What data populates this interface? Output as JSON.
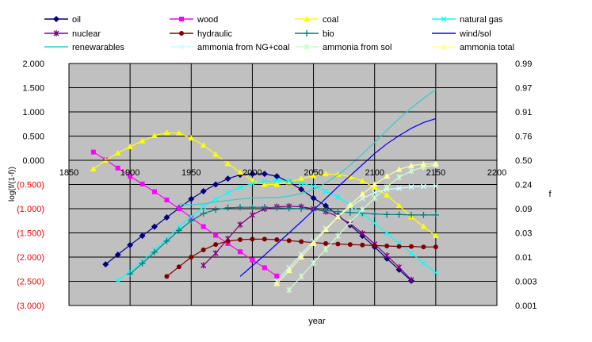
{
  "chart_data": {
    "type": "line",
    "xlabel": "year",
    "ylabel": "log(f/(1-f))",
    "y2label": "f",
    "xlim": [
      1850,
      2200
    ],
    "ylim": [
      -3.0,
      2.0
    ],
    "x_ticks": [
      "1850",
      "1900",
      "1950",
      "2000",
      "2050",
      "2100",
      "2150",
      "2200"
    ],
    "y_ticks": [
      "2.000",
      "1.500",
      "1.000",
      "0.500",
      "0.000",
      "(0.500)",
      "(1.000)",
      "(1.500)",
      "(2.000)",
      "(2.500)",
      "(3.000)"
    ],
    "y_tick_values": [
      2.0,
      1.5,
      1.0,
      0.5,
      0.0,
      -0.5,
      -1.0,
      -1.5,
      -2.0,
      -2.5,
      -3.0
    ],
    "y2_ticks": [
      "0.99",
      "0.97",
      "0.91",
      "0.76",
      "0.50",
      "0.24",
      "0.09",
      "0.03",
      "0.01",
      "0.003",
      "0.001"
    ],
    "grid": true,
    "plot_background": "#c0c0c0",
    "legend_position": "top",
    "series": [
      {
        "name": "oil",
        "color": "#000080",
        "marker": "diamond",
        "x": [
          1880,
          1890,
          1900,
          1910,
          1920,
          1930,
          1940,
          1950,
          1960,
          1970,
          1980,
          1990,
          2000,
          2010,
          2020,
          2030,
          2040,
          2050,
          2060,
          2070,
          2080,
          2090,
          2100,
          2110,
          2120,
          2130
        ],
        "y": [
          -2.15,
          -1.95,
          -1.75,
          -1.56,
          -1.37,
          -1.18,
          -0.99,
          -0.8,
          -0.64,
          -0.5,
          -0.38,
          -0.3,
          -0.28,
          -0.28,
          -0.33,
          -0.45,
          -0.6,
          -0.78,
          -0.94,
          -1.14,
          -1.34,
          -1.56,
          -1.79,
          -2.03,
          -2.26,
          -2.49
        ]
      },
      {
        "name": "wood",
        "color": "#ff00ff",
        "marker": "square",
        "x": [
          1870,
          1880,
          1890,
          1900,
          1910,
          1920,
          1930,
          1940,
          1950,
          1960,
          1970,
          1980,
          1990,
          2000,
          2010,
          2020
        ],
        "y": [
          0.17,
          0.01,
          -0.16,
          -0.33,
          -0.49,
          -0.65,
          -0.82,
          -1.0,
          -1.18,
          -1.37,
          -1.55,
          -1.72,
          -1.89,
          -2.06,
          -2.22,
          -2.39
        ]
      },
      {
        "name": "coal",
        "color": "#ffff00",
        "marker": "triangle",
        "x": [
          1870,
          1880,
          1890,
          1900,
          1910,
          1920,
          1930,
          1940,
          1950,
          1960,
          1970,
          1980,
          1990,
          2000,
          2010,
          2020,
          2030,
          2040,
          2050,
          2060,
          2070,
          2080,
          2090,
          2100,
          2110,
          2120,
          2130,
          2140,
          2150
        ],
        "y": [
          -0.18,
          0.0,
          0.15,
          0.28,
          0.4,
          0.51,
          0.57,
          0.56,
          0.46,
          0.31,
          0.12,
          -0.07,
          -0.25,
          -0.42,
          -0.5,
          -0.5,
          -0.45,
          -0.38,
          -0.32,
          -0.28,
          -0.29,
          -0.34,
          -0.43,
          -0.56,
          -0.72,
          -0.94,
          -1.17,
          -1.37,
          -1.56
        ]
      },
      {
        "name": "natural gas",
        "color": "#00ffff",
        "marker": "x",
        "x": [
          1890,
          1900,
          1910,
          1920,
          1930,
          1940,
          1950,
          1960,
          1970,
          1980,
          1990,
          2000,
          2010,
          2020,
          2030,
          2040,
          2050,
          2060,
          2070,
          2080,
          2090,
          2100,
          2110,
          2120,
          2130,
          2140,
          2150
        ],
        "y": [
          -2.48,
          -2.29,
          -2.08,
          -1.85,
          -1.62,
          -1.38,
          -1.16,
          -0.96,
          -0.8,
          -0.67,
          -0.56,
          -0.48,
          -0.44,
          -0.42,
          -0.43,
          -0.47,
          -0.54,
          -0.64,
          -0.76,
          -0.92,
          -1.1,
          -1.3,
          -1.51,
          -1.72,
          -1.92,
          -2.12,
          -2.32
        ]
      },
      {
        "name": "nuclear",
        "color": "#800080",
        "marker": "star",
        "x": [
          1960,
          1970,
          1980,
          1990,
          2000,
          2010,
          2020,
          2030,
          2040,
          2050,
          2060,
          2070,
          2080,
          2090,
          2100,
          2110,
          2120,
          2130
        ],
        "y": [
          -2.17,
          -1.92,
          -1.62,
          -1.33,
          -1.13,
          -1.0,
          -0.96,
          -0.95,
          -0.96,
          -1.0,
          -1.06,
          -1.16,
          -1.31,
          -1.51,
          -1.73,
          -1.97,
          -2.21,
          -2.47
        ]
      },
      {
        "name": "hydraulic",
        "color": "#800000",
        "marker": "circle",
        "x": [
          1930,
          1940,
          1950,
          1960,
          1970,
          1980,
          1990,
          2000,
          2010,
          2020,
          2030,
          2040,
          2050,
          2060,
          2070,
          2080,
          2090,
          2100,
          2110,
          2120,
          2130,
          2140,
          2150
        ],
        "y": [
          -2.4,
          -2.2,
          -2.0,
          -1.85,
          -1.74,
          -1.67,
          -1.64,
          -1.63,
          -1.63,
          -1.64,
          -1.66,
          -1.68,
          -1.7,
          -1.72,
          -1.73,
          -1.74,
          -1.75,
          -1.76,
          -1.77,
          -1.78,
          -1.78,
          -1.79,
          -1.79
        ]
      },
      {
        "name": "bio",
        "color": "#008080",
        "marker": "plus",
        "x": [
          1900,
          1910,
          1920,
          1930,
          1940,
          1950,
          1960,
          1970,
          1980,
          1990,
          2000,
          2010,
          2020,
          2030,
          2040,
          2050,
          2060,
          2070,
          2080,
          2090,
          2100,
          2110,
          2120,
          2130,
          2140,
          2150
        ],
        "y": [
          -2.35,
          -2.13,
          -1.9,
          -1.67,
          -1.45,
          -1.25,
          -1.1,
          -1.02,
          -0.98,
          -0.97,
          -0.97,
          -0.97,
          -0.98,
          -0.99,
          -1.0,
          -1.02,
          -1.04,
          -1.06,
          -1.08,
          -1.09,
          -1.11,
          -1.12,
          -1.12,
          -1.13,
          -1.13,
          -1.13
        ]
      },
      {
        "name": "wind/sol",
        "color": "#0000ff",
        "marker": "none",
        "x": [
          1990,
          2000,
          2010,
          2020,
          2030,
          2040,
          2050,
          2060,
          2070,
          2080,
          2090,
          2100,
          2110,
          2120,
          2130,
          2140,
          2150
        ],
        "y": [
          -2.4,
          -2.18,
          -1.96,
          -1.73,
          -1.5,
          -1.27,
          -1.03,
          -0.79,
          -0.55,
          -0.32,
          -0.09,
          0.14,
          0.34,
          0.51,
          0.66,
          0.78,
          0.86
        ]
      },
      {
        "name": "renewarables",
        "color": "#33cccc",
        "marker": "none",
        "x": [
          1940,
          1950,
          1960,
          1970,
          1980,
          1990,
          2000,
          2010,
          2020,
          2030,
          2040,
          2050,
          2060,
          2070,
          2080,
          2090,
          2100,
          2110,
          2120,
          2130,
          2140,
          2150
        ],
        "y": [
          -0.9,
          -0.92,
          -0.9,
          -0.86,
          -0.83,
          -0.8,
          -0.78,
          -0.77,
          -0.77,
          -0.74,
          -0.69,
          -0.6,
          -0.47,
          -0.3,
          -0.1,
          0.13,
          0.37,
          0.62,
          0.86,
          1.08,
          1.28,
          1.46
        ]
      },
      {
        "name": "ammonia from NG+coal",
        "color": "#ccffff",
        "marker": "x",
        "x": [
          2020,
          2030,
          2040,
          2050,
          2060,
          2070,
          2080,
          2090,
          2100,
          2110,
          2120,
          2130,
          2140,
          2150
        ],
        "y": [
          -2.5,
          -2.22,
          -1.94,
          -1.67,
          -1.41,
          -1.17,
          -0.96,
          -0.79,
          -0.67,
          -0.6,
          -0.58,
          -0.55,
          -0.54,
          -0.53
        ]
      },
      {
        "name": "ammonia from sol",
        "color": "#ccffcc",
        "marker": "star",
        "x": [
          2030,
          2040,
          2050,
          2060,
          2070,
          2080,
          2090,
          2100,
          2110,
          2120,
          2130,
          2140,
          2150
        ],
        "y": [
          -2.68,
          -2.4,
          -2.12,
          -1.84,
          -1.56,
          -1.28,
          -1.02,
          -0.78,
          -0.55,
          -0.35,
          -0.22,
          -0.14,
          -0.1
        ]
      },
      {
        "name": "ammonia total",
        "color": "#ffff99",
        "marker": "triangle",
        "x": [
          2020,
          2030,
          2040,
          2050,
          2060,
          2070,
          2080,
          2090,
          2100,
          2110,
          2120,
          2130,
          2140,
          2150
        ],
        "y": [
          -2.55,
          -2.28,
          -2.0,
          -1.72,
          -1.44,
          -1.17,
          -0.92,
          -0.7,
          -0.5,
          -0.33,
          -0.19,
          -0.11,
          -0.08,
          -0.07
        ]
      }
    ]
  }
}
